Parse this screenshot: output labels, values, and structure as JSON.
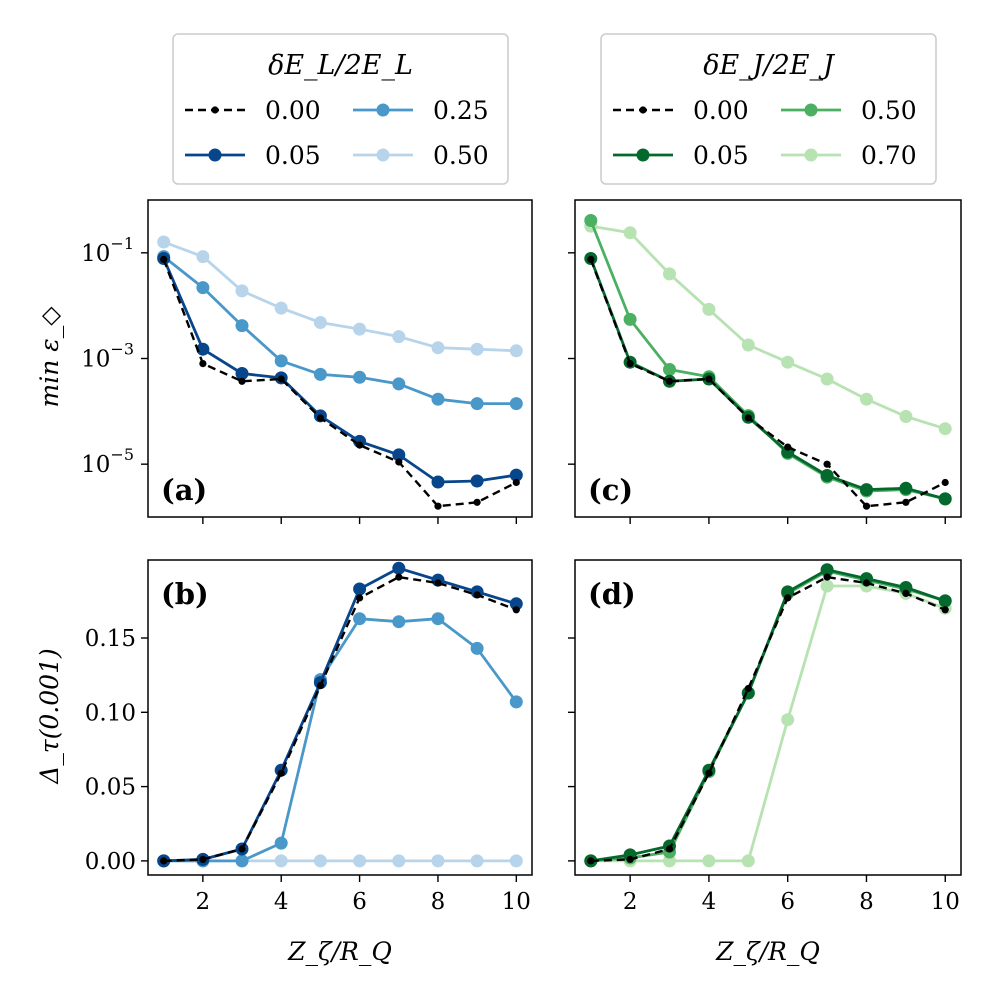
{
  "figure": {
    "x_label": "Z_ζ/R_Q",
    "y_label_top": "min ε_◇",
    "y_label_bottom": "Δ_τ(0.001)"
  },
  "legends": [
    {
      "title": "δE_L/2E_L",
      "entries": [
        {
          "label": "0.00",
          "color": "#000000",
          "dashed": true,
          "small": true
        },
        {
          "label": "0.25",
          "color": "#4a98c9"
        },
        {
          "label": "0.05",
          "color": "#08468b"
        },
        {
          "label": "0.50",
          "color": "#b7d4ea"
        }
      ]
    },
    {
      "title": "δE_J/2E_J",
      "entries": [
        {
          "label": "0.00",
          "color": "#000000",
          "dashed": true,
          "small": true
        },
        {
          "label": "0.50",
          "color": "#4bb062"
        },
        {
          "label": "0.05",
          "color": "#05682d"
        },
        {
          "label": "0.70",
          "color": "#b7e2b1"
        }
      ]
    }
  ],
  "chart_data": [
    {
      "panel": "(a)",
      "type": "line",
      "yscale": "log",
      "ylim": [
        1e-06,
        1.0
      ],
      "xlim": [
        0.6,
        10.4
      ],
      "x": [
        1,
        2,
        3,
        4,
        5,
        6,
        7,
        8,
        9,
        10
      ],
      "xticks": [
        "2",
        "4",
        "6",
        "8",
        "10"
      ],
      "xtick_values": [
        2,
        4,
        6,
        8,
        10
      ],
      "yticks": [
        "10^-1",
        "10^-3",
        "10^-5"
      ],
      "ytick_values": [
        0.1,
        0.001,
        1e-05
      ],
      "series": [
        {
          "name": "0.50",
          "color": "#b7d4ea",
          "values": [
            0.16,
            0.085,
            0.019,
            0.009,
            0.0048,
            0.0036,
            0.0026,
            0.0016,
            0.0015,
            0.0014
          ]
        },
        {
          "name": "0.25",
          "color": "#4a98c9",
          "values": [
            0.085,
            0.022,
            0.0042,
            0.0009,
            0.0005,
            0.00044,
            0.00033,
            0.00017,
            0.00014,
            0.00014
          ]
        },
        {
          "name": "0.05",
          "color": "#08468b",
          "values": [
            0.078,
            0.0015,
            0.00052,
            0.00043,
            8.2e-05,
            2.7e-05,
            1.5e-05,
            4.6e-06,
            4.8e-06,
            6.2e-06
          ]
        },
        {
          "name": "0.00",
          "color": "#000000",
          "dashed": true,
          "values": [
            0.075,
            0.0008,
            0.00037,
            0.00041,
            7.5e-05,
            2.3e-05,
            1.1e-05,
            1.6e-06,
            1.9e-06,
            4.5e-06
          ]
        }
      ]
    },
    {
      "panel": "(c)",
      "type": "line",
      "yscale": "log",
      "ylim": [
        1e-06,
        1.0
      ],
      "xlim": [
        0.6,
        10.4
      ],
      "x": [
        1,
        2,
        3,
        4,
        5,
        6,
        7,
        8,
        9,
        10
      ],
      "xticks": [
        "2",
        "4",
        "6",
        "8",
        "10"
      ],
      "xtick_values": [
        2,
        4,
        6,
        8,
        10
      ],
      "yticks": [],
      "ytick_values": [
        0.1,
        0.001,
        1e-05
      ],
      "series": [
        {
          "name": "0.70",
          "color": "#b7e2b1",
          "values": [
            0.32,
            0.24,
            0.04,
            0.0085,
            0.0018,
            0.00085,
            0.00041,
            0.00017,
            8e-05,
            4.7e-05
          ]
        },
        {
          "name": "0.50",
          "color": "#4bb062",
          "values": [
            0.41,
            0.0055,
            0.00062,
            0.00045,
            8.3e-05,
            1.6e-05,
            5.7e-06,
            3.1e-06,
            3.3e-06,
            2.2e-06
          ]
        },
        {
          "name": "0.05",
          "color": "#05682d",
          "values": [
            0.078,
            0.00085,
            0.00037,
            0.00041,
            7.7e-05,
            1.7e-05,
            6.1e-06,
            3.3e-06,
            3.5e-06,
            2.2e-06
          ]
        },
        {
          "name": "0.00",
          "color": "#000000",
          "dashed": true,
          "values": [
            0.075,
            0.0008,
            0.00037,
            0.00041,
            7.5e-05,
            2.1e-05,
            1e-05,
            1.6e-06,
            1.9e-06,
            4.5e-06
          ]
        }
      ]
    },
    {
      "panel": "(b)",
      "type": "line",
      "yscale": "linear",
      "ylim": [
        -0.0095,
        0.2025
      ],
      "xlim": [
        0.6,
        10.4
      ],
      "x": [
        1,
        2,
        3,
        4,
        5,
        6,
        7,
        8,
        9,
        10
      ],
      "xticks": [
        "2",
        "4",
        "6",
        "8",
        "10"
      ],
      "xtick_values": [
        2,
        4,
        6,
        8,
        10
      ],
      "yticks": [
        "0.00",
        "0.05",
        "0.10",
        "0.15"
      ],
      "ytick_values": [
        0.0,
        0.05,
        0.1,
        0.15
      ],
      "series": [
        {
          "name": "0.50",
          "color": "#b7d4ea",
          "values": [
            0.0,
            0.0,
            0.0,
            0.0,
            0.0,
            0.0,
            0.0,
            0.0,
            0.0,
            0.0
          ]
        },
        {
          "name": "0.25",
          "color": "#4a98c9",
          "values": [
            0.0,
            0.0,
            0.0,
            0.012,
            0.122,
            0.163,
            0.161,
            0.163,
            0.143,
            0.107
          ]
        },
        {
          "name": "0.05",
          "color": "#08468b",
          "values": [
            0.0,
            0.001,
            0.008,
            0.061,
            0.12,
            0.183,
            0.197,
            0.189,
            0.181,
            0.173
          ]
        },
        {
          "name": "0.00",
          "color": "#000000",
          "dashed": true,
          "values": [
            0.0,
            0.001,
            0.008,
            0.059,
            0.118,
            0.177,
            0.191,
            0.187,
            0.179,
            0.169
          ]
        }
      ]
    },
    {
      "panel": "(d)",
      "type": "line",
      "yscale": "linear",
      "ylim": [
        -0.0095,
        0.2025
      ],
      "xlim": [
        0.6,
        10.4
      ],
      "x": [
        1,
        2,
        3,
        4,
        5,
        6,
        7,
        8,
        9,
        10
      ],
      "xticks": [
        "2",
        "4",
        "6",
        "8",
        "10"
      ],
      "xtick_values": [
        2,
        4,
        6,
        8,
        10
      ],
      "yticks": [],
      "ytick_values": [
        0.0,
        0.05,
        0.1,
        0.15
      ],
      "series": [
        {
          "name": "0.70",
          "color": "#b7e2b1",
          "values": [
            0.0,
            0.0,
            0.0,
            0.0,
            0.0,
            0.095,
            0.185,
            0.185,
            0.18,
            0.17
          ]
        },
        {
          "name": "0.50",
          "color": "#4bb062",
          "values": [
            0.0,
            0.002,
            0.006,
            0.06,
            0.113,
            0.18,
            0.195,
            0.189,
            0.183,
            0.175
          ]
        },
        {
          "name": "0.05",
          "color": "#05682d",
          "values": [
            0.0,
            0.004,
            0.01,
            0.061,
            0.113,
            0.181,
            0.196,
            0.19,
            0.184,
            0.175
          ]
        },
        {
          "name": "0.00",
          "color": "#000000",
          "dashed": true,
          "values": [
            0.0,
            0.001,
            0.008,
            0.059,
            0.116,
            0.177,
            0.191,
            0.187,
            0.18,
            0.169
          ]
        }
      ]
    }
  ]
}
